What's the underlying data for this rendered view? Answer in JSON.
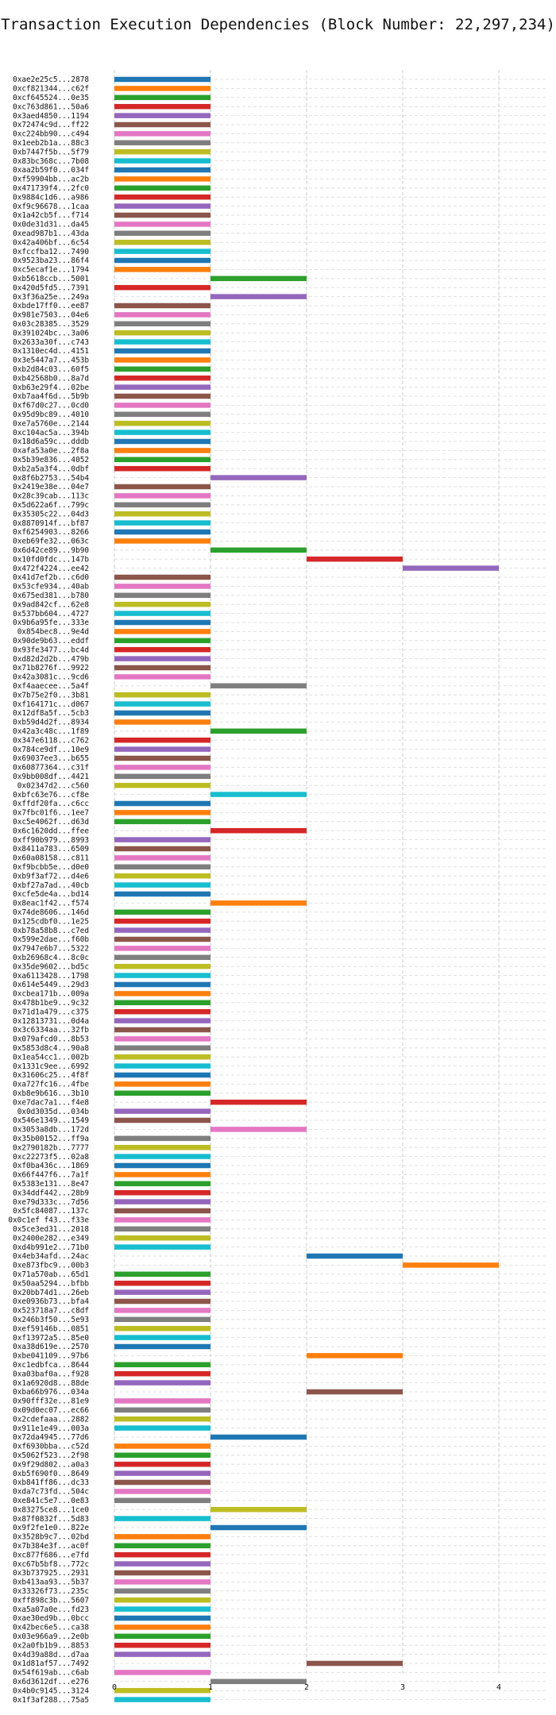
{
  "chart_data": {
    "type": "bar",
    "orientation": "horizontal-gantt",
    "title": "Transaction Execution Dependencies (Block Number: 22,297,234)",
    "xlabel": "",
    "ylabel": "",
    "xlim": [
      0,
      4.5
    ],
    "xticks": [
      "0",
      "1",
      "2",
      "3",
      "4"
    ],
    "grid": true,
    "legend": "none",
    "palette": [
      "#1f77b4",
      "#ff7f0e",
      "#2ca02c",
      "#d62728",
      "#9467bd",
      "#8c564b",
      "#e377c2",
      "#7f7f7f",
      "#bcbd22",
      "#17becf"
    ],
    "series": [
      {
        "label": "0xae2e25c5...2878",
        "start": 0,
        "end": 1
      },
      {
        "label": "0xcf821344...c62f",
        "start": 0,
        "end": 1
      },
      {
        "label": "0xcf645524...0e35",
        "start": 0,
        "end": 1
      },
      {
        "label": "0xc763d861...50a6",
        "start": 0,
        "end": 1
      },
      {
        "label": "0x3aed4850...1194",
        "start": 0,
        "end": 1
      },
      {
        "label": "0x72474c9d...ff22",
        "start": 0,
        "end": 1
      },
      {
        "label": "0xc224bb90...c494",
        "start": 0,
        "end": 1
      },
      {
        "label": "0x1eeb2b1a...88c3",
        "start": 0,
        "end": 1
      },
      {
        "label": "0xb7447f5b...5f79",
        "start": 0,
        "end": 1
      },
      {
        "label": "0x83bc368c...7b08",
        "start": 0,
        "end": 1
      },
      {
        "label": "0xaa2b59f0...034f",
        "start": 0,
        "end": 1
      },
      {
        "label": "0xf59904bb...ac2b",
        "start": 0,
        "end": 1
      },
      {
        "label": "0x471739f4...2fc0",
        "start": 0,
        "end": 1
      },
      {
        "label": "0x9884c1d6...a986",
        "start": 0,
        "end": 1
      },
      {
        "label": "0xf9c96678...1caa",
        "start": 0,
        "end": 1
      },
      {
        "label": "0x1a42cb5f...f714",
        "start": 0,
        "end": 1
      },
      {
        "label": "0x0de31d31...da45",
        "start": 0,
        "end": 1
      },
      {
        "label": "0xead987b1...43da",
        "start": 0,
        "end": 1
      },
      {
        "label": "0x42a406bf...6c54",
        "start": 0,
        "end": 1
      },
      {
        "label": "0xfccfba12...7490",
        "start": 0,
        "end": 1
      },
      {
        "label": "0x9523ba23...86f4",
        "start": 0,
        "end": 1
      },
      {
        "label": "0xc5ecaf1e...1794",
        "start": 0,
        "end": 1
      },
      {
        "label": "0xb5618ccb...5001",
        "start": 1,
        "end": 2
      },
      {
        "label": "0x420d5fd5...7391",
        "start": 0,
        "end": 1
      },
      {
        "label": "0x3f36a25e...249a",
        "start": 1,
        "end": 2
      },
      {
        "label": "0xbde17ff0...ee87",
        "start": 0,
        "end": 1
      },
      {
        "label": "0x981e7503...04e6",
        "start": 0,
        "end": 1
      },
      {
        "label": "0x03c28385...3529",
        "start": 0,
        "end": 1
      },
      {
        "label": "0x391024bc...3a06",
        "start": 0,
        "end": 1
      },
      {
        "label": "0x2633a30f...c743",
        "start": 0,
        "end": 1
      },
      {
        "label": "0x1310ec4d...4151",
        "start": 0,
        "end": 1
      },
      {
        "label": "0x3e5447a7...453b",
        "start": 0,
        "end": 1
      },
      {
        "label": "0xb2d84c03...60f5",
        "start": 0,
        "end": 1
      },
      {
        "label": "0xb42568b0...8a7d",
        "start": 0,
        "end": 1
      },
      {
        "label": "0xb63e29f4...02be",
        "start": 0,
        "end": 1
      },
      {
        "label": "0xb7aa4f6d...5b9b",
        "start": 0,
        "end": 1
      },
      {
        "label": "0xf67d0c27...0cd0",
        "start": 0,
        "end": 1
      },
      {
        "label": "0x95d9bc89...4010",
        "start": 0,
        "end": 1
      },
      {
        "label": "0xe7a5760e...2144",
        "start": 0,
        "end": 1
      },
      {
        "label": "0xc104ac5a...394b",
        "start": 0,
        "end": 1
      },
      {
        "label": "0x18d6a59c...dddb",
        "start": 0,
        "end": 1
      },
      {
        "label": "0xafa53a0e...2f8a",
        "start": 0,
        "end": 1
      },
      {
        "label": "0x5b39e836...4052",
        "start": 0,
        "end": 1
      },
      {
        "label": "0xb2a5a3f4...0dbf",
        "start": 0,
        "end": 1
      },
      {
        "label": "0x8f6b2753...54b4",
        "start": 1,
        "end": 2
      },
      {
        "label": "0x2419e38e...04e7",
        "start": 0,
        "end": 1
      },
      {
        "label": "0x28c39cab...113c",
        "start": 0,
        "end": 1
      },
      {
        "label": "0x5d622a6f...799c",
        "start": 0,
        "end": 1
      },
      {
        "label": "0x35305c22...04d3",
        "start": 0,
        "end": 1
      },
      {
        "label": "0x8870914f...bf87",
        "start": 0,
        "end": 1
      },
      {
        "label": "0xf6254903...8266",
        "start": 0,
        "end": 1
      },
      {
        "label": "0xeb69fe32...063c",
        "start": 0,
        "end": 1
      },
      {
        "label": "0x6d42ce89...9b90",
        "start": 1,
        "end": 2
      },
      {
        "label": "0x10fd0fdc...147b",
        "start": 2,
        "end": 3
      },
      {
        "label": "0x472f4224...ee42",
        "start": 3,
        "end": 4
      },
      {
        "label": "0x41d7ef2b...c6d0",
        "start": 0,
        "end": 1
      },
      {
        "label": "0x53cfe934...40ab",
        "start": 0,
        "end": 1
      },
      {
        "label": "0x675ed381...b780",
        "start": 0,
        "end": 1
      },
      {
        "label": "0x9ad842cf...62e8",
        "start": 0,
        "end": 1
      },
      {
        "label": "0x537bb604...4727",
        "start": 0,
        "end": 1
      },
      {
        "label": "0x9b6a95fe...333e",
        "start": 0,
        "end": 1
      },
      {
        "label": "0x854bec8...9e4d",
        "start": 0,
        "end": 1
      },
      {
        "label": "0x90de9b63...eddf",
        "start": 0,
        "end": 1
      },
      {
        "label": "0x93fe3477...bc4d",
        "start": 0,
        "end": 1
      },
      {
        "label": "0xd82d2d2b...479b",
        "start": 0,
        "end": 1
      },
      {
        "label": "0x71b8276f...9922",
        "start": 0,
        "end": 1
      },
      {
        "label": "0x42a3081c...9cd6",
        "start": 0,
        "end": 1
      },
      {
        "label": "0xf4aaecee...5a4f",
        "start": 1,
        "end": 2
      },
      {
        "label": "0x7b75e2f0...3b81",
        "start": 0,
        "end": 1
      },
      {
        "label": "0xf164171c...d067",
        "start": 0,
        "end": 1
      },
      {
        "label": "0x12df8a5f...5cb3",
        "start": 0,
        "end": 1
      },
      {
        "label": "0xb59d4d2f...8934",
        "start": 0,
        "end": 1
      },
      {
        "label": "0x42a3c48c...1f89",
        "start": 1,
        "end": 2
      },
      {
        "label": "0x347e6118...c762",
        "start": 0,
        "end": 1
      },
      {
        "label": "0x784ce9df...10e9",
        "start": 0,
        "end": 1
      },
      {
        "label": "0x69037ee3...b655",
        "start": 0,
        "end": 1
      },
      {
        "label": "0x60877364...c31f",
        "start": 0,
        "end": 1
      },
      {
        "label": "0x9bb008df...4421",
        "start": 0,
        "end": 1
      },
      {
        "label": "0x02347d2...c560",
        "start": 0,
        "end": 1
      },
      {
        "label": "0xbfc63e76...cf8e",
        "start": 1,
        "end": 2
      },
      {
        "label": "0xffdf20fa...c6cc",
        "start": 0,
        "end": 1
      },
      {
        "label": "0x7fbc01f6...1ee7",
        "start": 0,
        "end": 1
      },
      {
        "label": "0xc5e4062f...d63d",
        "start": 0,
        "end": 1
      },
      {
        "label": "0x6c1620dd...ffee",
        "start": 1,
        "end": 2
      },
      {
        "label": "0xff90b979...8993",
        "start": 0,
        "end": 1
      },
      {
        "label": "0x8411a783...6509",
        "start": 0,
        "end": 1
      },
      {
        "label": "0x60a08158...c811",
        "start": 0,
        "end": 1
      },
      {
        "label": "0xf9bcbb5e...d0e0",
        "start": 0,
        "end": 1
      },
      {
        "label": "0xb9f3af72...d4e6",
        "start": 0,
        "end": 1
      },
      {
        "label": "0xbf27a7ad...40cb",
        "start": 0,
        "end": 1
      },
      {
        "label": "0xcfe5de4a...bd14",
        "start": 0,
        "end": 1
      },
      {
        "label": "0x8eac1f42...f574",
        "start": 1,
        "end": 2
      },
      {
        "label": "0x74de8606...146d",
        "start": 0,
        "end": 1
      },
      {
        "label": "0x125cdbf0...1e25",
        "start": 0,
        "end": 1
      },
      {
        "label": "0xb78a58b8...c7ed",
        "start": 0,
        "end": 1
      },
      {
        "label": "0x599e2dae...f60b",
        "start": 0,
        "end": 1
      },
      {
        "label": "0x7947e6b7...5322",
        "start": 0,
        "end": 1
      },
      {
        "label": "0xb26968c4...8c0c",
        "start": 0,
        "end": 1
      },
      {
        "label": "0x35de9602...bd5c",
        "start": 0,
        "end": 1
      },
      {
        "label": "0xa6113428...1798",
        "start": 0,
        "end": 1
      },
      {
        "label": "0x614e5449...29d3",
        "start": 0,
        "end": 1
      },
      {
        "label": "0xcbea171b...009a",
        "start": 0,
        "end": 1
      },
      {
        "label": "0x478b1be9...9c32",
        "start": 0,
        "end": 1
      },
      {
        "label": "0x71d1a479...c375",
        "start": 0,
        "end": 1
      },
      {
        "label": "0x12813731...0d4a",
        "start": 0,
        "end": 1
      },
      {
        "label": "0x3c6334aa...32fb",
        "start": 0,
        "end": 1
      },
      {
        "label": "0x079afcd0...8b53",
        "start": 0,
        "end": 1
      },
      {
        "label": "0x5853d8c4...90a8",
        "start": 0,
        "end": 1
      },
      {
        "label": "0x1ea54cc1...002b",
        "start": 0,
        "end": 1
      },
      {
        "label": "0x1331c9ee...6992",
        "start": 0,
        "end": 1
      },
      {
        "label": "0x31606c25...4f8f",
        "start": 0,
        "end": 1
      },
      {
        "label": "0xa727fc16...4fbe",
        "start": 0,
        "end": 1
      },
      {
        "label": "0xb8e9b616...3b10",
        "start": 0,
        "end": 1
      },
      {
        "label": "0xe7dac7a1...f4e8",
        "start": 1,
        "end": 2
      },
      {
        "label": "0x0d3035d...034b",
        "start": 0,
        "end": 1
      },
      {
        "label": "0x546e1349...1549",
        "start": 0,
        "end": 1
      },
      {
        "label": "0x3053a8db...172d",
        "start": 1,
        "end": 2
      },
      {
        "label": "0x35b00152...ff9a",
        "start": 0,
        "end": 1
      },
      {
        "label": "0x2790182b...7777",
        "start": 0,
        "end": 1
      },
      {
        "label": "0xc22273f5...02a8",
        "start": 0,
        "end": 1
      },
      {
        "label": "0xf0ba436c...1869",
        "start": 0,
        "end": 1
      },
      {
        "label": "0x66f447f6...7a1f",
        "start": 0,
        "end": 1
      },
      {
        "label": "0x5383e131...8e47",
        "start": 0,
        "end": 1
      },
      {
        "label": "0x34ddf442...28b9",
        "start": 0,
        "end": 1
      },
      {
        "label": "0xe79d333c...7d56",
        "start": 0,
        "end": 1
      },
      {
        "label": "0x5fc84087...137c",
        "start": 0,
        "end": 1
      },
      {
        "label": "0x0c1ef f43...f33e",
        "start": 0,
        "end": 1
      },
      {
        "label": "0x5ce3ed31...2018",
        "start": 0,
        "end": 1
      },
      {
        "label": "0x2400e282...e349",
        "start": 0,
        "end": 1
      },
      {
        "label": "0xd4b991e2...71b0",
        "start": 0,
        "end": 1
      },
      {
        "label": "0x4eb34afd...24ac",
        "start": 2,
        "end": 3
      },
      {
        "label": "0xe873fbc9...00b3",
        "start": 3,
        "end": 4
      },
      {
        "label": "0x71a570ab...65d1",
        "start": 0,
        "end": 1
      },
      {
        "label": "0x50aa5294...bfbb",
        "start": 0,
        "end": 1
      },
      {
        "label": "0x20bb74d1...26eb",
        "start": 0,
        "end": 1
      },
      {
        "label": "0xe0936b73...bfa4",
        "start": 0,
        "end": 1
      },
      {
        "label": "0x523718a7...c8df",
        "start": 0,
        "end": 1
      },
      {
        "label": "0x246b3f50...5e93",
        "start": 0,
        "end": 1
      },
      {
        "label": "0xef59146b...0851",
        "start": 0,
        "end": 1
      },
      {
        "label": "0xf13972a5...85e0",
        "start": 0,
        "end": 1
      },
      {
        "label": "0xa38d619e...2570",
        "start": 0,
        "end": 1
      },
      {
        "label": "0xbe041109...97b6",
        "start": 2,
        "end": 3
      },
      {
        "label": "0xc1edbfca...8644",
        "start": 0,
        "end": 1
      },
      {
        "label": "0xa03baf0a...f928",
        "start": 0,
        "end": 1
      },
      {
        "label": "0x1a6920d8...88de",
        "start": 0,
        "end": 1
      },
      {
        "label": "0xba66b976...034a",
        "start": 2,
        "end": 3
      },
      {
        "label": "0x90fff32e...81e9",
        "start": 0,
        "end": 1
      },
      {
        "label": "0x09d0ec07...ec66",
        "start": 0,
        "end": 1
      },
      {
        "label": "0x2cdefaaa...2882",
        "start": 0,
        "end": 1
      },
      {
        "label": "0x911e1e49...003a",
        "start": 0,
        "end": 1
      },
      {
        "label": "0x72da4945...77d6",
        "start": 1,
        "end": 2
      },
      {
        "label": "0xf6930bba...c52d",
        "start": 0,
        "end": 1
      },
      {
        "label": "0x5062f523...2f98",
        "start": 0,
        "end": 1
      },
      {
        "label": "0x9f29d802...a0a3",
        "start": 0,
        "end": 1
      },
      {
        "label": "0xb5f690f0...8649",
        "start": 0,
        "end": 1
      },
      {
        "label": "0xb841ff86...dc33",
        "start": 0,
        "end": 1
      },
      {
        "label": "0xda7c73fd...504c",
        "start": 0,
        "end": 1
      },
      {
        "label": "0xe841c5e7...0e83",
        "start": 0,
        "end": 1
      },
      {
        "label": "0x83275ce8...1ce0",
        "start": 1,
        "end": 2
      },
      {
        "label": "0x87f0832f...5d83",
        "start": 0,
        "end": 1
      },
      {
        "label": "0x9f2fe1e0...822e",
        "start": 1,
        "end": 2
      },
      {
        "label": "0x3528b9c7...02bd",
        "start": 0,
        "end": 1
      },
      {
        "label": "0x7b384e3f...ac0f",
        "start": 0,
        "end": 1
      },
      {
        "label": "0xc877f686...e7fd",
        "start": 0,
        "end": 1
      },
      {
        "label": "0xc67b5bf8...772c",
        "start": 0,
        "end": 1
      },
      {
        "label": "0x3b737925...2931",
        "start": 0,
        "end": 1
      },
      {
        "label": "0xb413aa93...5b37",
        "start": 0,
        "end": 1
      },
      {
        "label": "0x33326f73...235c",
        "start": 0,
        "end": 1
      },
      {
        "label": "0xff898c3b...5607",
        "start": 0,
        "end": 1
      },
      {
        "label": "0xa5a07a0e...fd23",
        "start": 0,
        "end": 1
      },
      {
        "label": "0xae30ed9b...0bcc",
        "start": 0,
        "end": 1
      },
      {
        "label": "0x42bec6e5...ca38",
        "start": 0,
        "end": 1
      },
      {
        "label": "0x03e966a9...2e0b",
        "start": 0,
        "end": 1
      },
      {
        "label": "0x2a0fb1b9...8853",
        "start": 0,
        "end": 1
      },
      {
        "label": "0x4d39a88d...d7aa",
        "start": 0,
        "end": 1
      },
      {
        "label": "0x1d81af57...7492",
        "start": 2,
        "end": 3
      },
      {
        "label": "0x54f619ab...c6ab",
        "start": 0,
        "end": 1
      },
      {
        "label": "0x6d3612df...e276",
        "start": 1,
        "end": 2
      },
      {
        "label": "0x4b0c9145...3124",
        "start": 0,
        "end": 1
      },
      {
        "label": "0x1f3af288...75a5",
        "start": 0,
        "end": 1
      }
    ]
  }
}
